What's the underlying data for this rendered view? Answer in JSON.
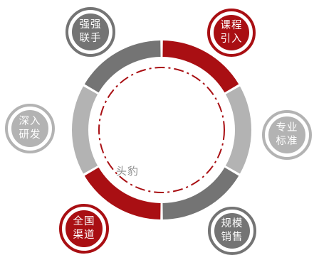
{
  "colors": {
    "red": "#a90f13",
    "dark_gray": "#747474",
    "light_gray": "#b3b3b3",
    "background": "#ffffff"
  },
  "ring_segments": [
    {
      "color": "red"
    },
    {
      "color": "light_gray"
    },
    {
      "color": "dark_gray"
    },
    {
      "color": "red"
    },
    {
      "color": "light_gray"
    },
    {
      "color": "dark_gray"
    }
  ],
  "nodes": [
    {
      "id": "course-import",
      "line1": "课程",
      "line2": "引入",
      "color": "red"
    },
    {
      "id": "professional",
      "line1": "专业",
      "line2": "标准",
      "color": "light_gray"
    },
    {
      "id": "scale-sales",
      "line1": "规模",
      "line2": "销售",
      "color": "dark_gray"
    },
    {
      "id": "national",
      "line1": "全国",
      "line2": "渠道",
      "color": "red"
    },
    {
      "id": "research",
      "line1": "深入",
      "line2": "研发",
      "color": "light_gray"
    },
    {
      "id": "alliance",
      "line1": "强强",
      "line2": "联手",
      "color": "dark_gray"
    }
  ],
  "watermark": "头豹"
}
